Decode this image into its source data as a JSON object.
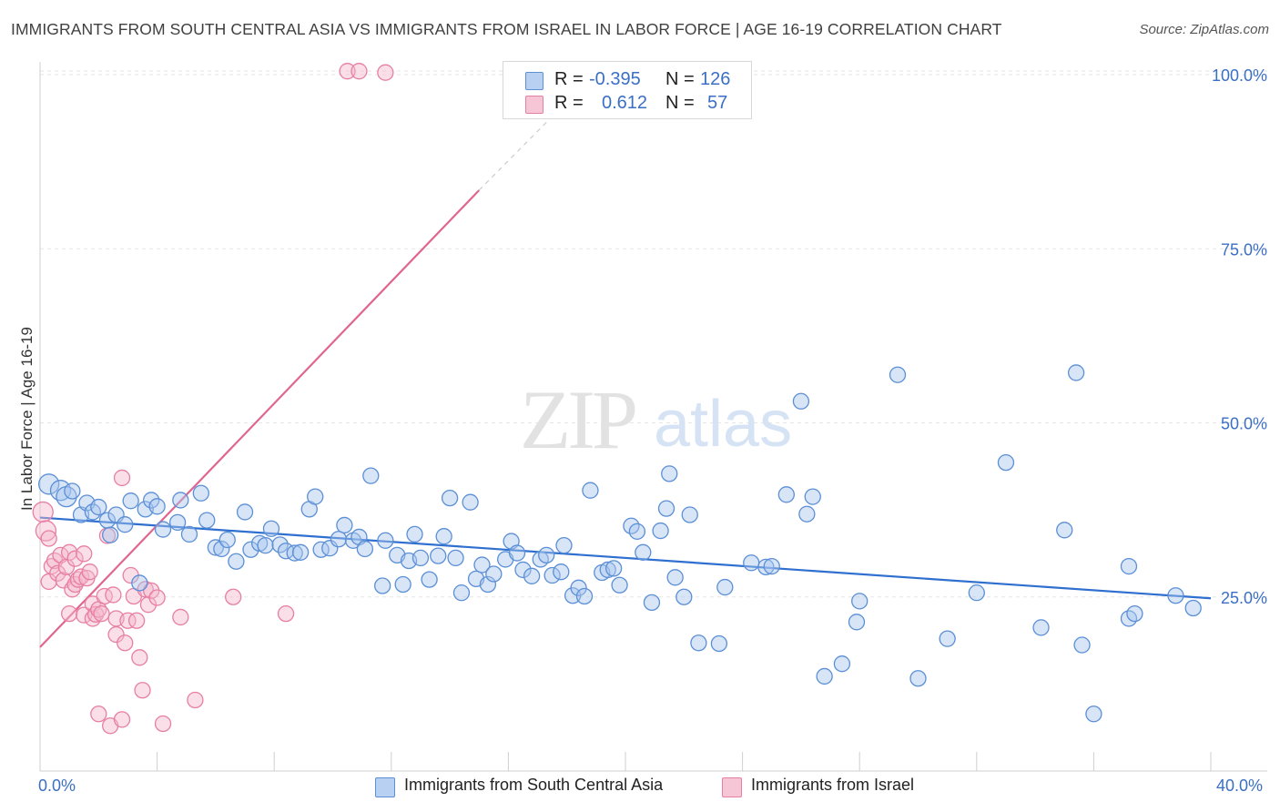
{
  "title": "IMMIGRANTS FROM SOUTH CENTRAL ASIA VS IMMIGRANTS FROM ISRAEL IN LABOR FORCE | AGE 16-19 CORRELATION CHART",
  "source": "Source: ZipAtlas.com",
  "watermark": {
    "zip": "ZIP",
    "atlas": "atlas"
  },
  "legend": {
    "series1": {
      "r_label": "R =",
      "r_value": "-0.395",
      "n_label": "N =",
      "n_value": "126"
    },
    "series2": {
      "r_label": "R =",
      "r_value": "0.612",
      "n_label": "N =",
      "n_value": "57"
    }
  },
  "colors": {
    "blue": "#5b8fd6",
    "blue_fill": "#a9c5ee",
    "blue_line": "#2f6fcf",
    "pink": "#e77fa3",
    "pink_fill": "#f5b8cc",
    "pink_line": "#e06690",
    "axis_text": "#3b6fc4"
  },
  "chart_data": {
    "type": "scatter",
    "title": "IMMIGRANTS FROM SOUTH CENTRAL ASIA VS IMMIGRANTS FROM ISRAEL IN LABOR FORCE | AGE 16-19 CORRELATION CHART",
    "xlabel": "",
    "ylabel": "In Labor Force | Age 16-19",
    "xlim": [
      0,
      40
    ],
    "ylim": [
      0,
      103
    ],
    "x_tick_labels": [
      "0.0%",
      "40.0%"
    ],
    "y_ticks": [
      25,
      50,
      75,
      100
    ],
    "y_tick_labels": [
      "25.0%",
      "50.0%",
      "75.0%",
      "100.0%"
    ],
    "grid": true,
    "legend_position": "top-center",
    "series": [
      {
        "name": "Immigrants from South Central Asia",
        "color": "#5b8fd6",
        "trend": {
          "x": [
            0,
            40
          ],
          "y": [
            36.4,
            24.8
          ]
        },
        "points": [
          [
            0.3,
            41.2
          ],
          [
            0.7,
            40.3
          ],
          [
            0.9,
            39.4
          ],
          [
            1.1,
            40.2
          ],
          [
            1.4,
            36.8
          ],
          [
            1.6,
            38.5
          ],
          [
            1.8,
            37.2
          ],
          [
            2.0,
            37.9
          ],
          [
            2.3,
            36.0
          ],
          [
            2.4,
            33.9
          ],
          [
            2.6,
            36.8
          ],
          [
            2.9,
            35.4
          ],
          [
            3.1,
            38.8
          ],
          [
            3.4,
            27.0
          ],
          [
            3.6,
            37.6
          ],
          [
            3.8,
            38.9
          ],
          [
            4.0,
            38.0
          ],
          [
            4.2,
            34.7
          ],
          [
            4.7,
            35.7
          ],
          [
            4.8,
            38.9
          ],
          [
            5.1,
            34.0
          ],
          [
            5.5,
            39.9
          ],
          [
            5.7,
            36.0
          ],
          [
            6.0,
            32.1
          ],
          [
            6.2,
            31.9
          ],
          [
            6.4,
            33.2
          ],
          [
            6.7,
            30.1
          ],
          [
            7.0,
            37.2
          ],
          [
            7.2,
            31.8
          ],
          [
            7.5,
            32.7
          ],
          [
            7.7,
            32.4
          ],
          [
            7.9,
            34.8
          ],
          [
            8.2,
            32.5
          ],
          [
            8.4,
            31.6
          ],
          [
            8.7,
            31.3
          ],
          [
            8.9,
            31.4
          ],
          [
            9.2,
            37.6
          ],
          [
            9.4,
            39.4
          ],
          [
            9.6,
            31.8
          ],
          [
            9.9,
            32.0
          ],
          [
            10.2,
            33.3
          ],
          [
            10.4,
            35.3
          ],
          [
            10.7,
            33.1
          ],
          [
            10.9,
            33.6
          ],
          [
            11.1,
            31.9
          ],
          [
            11.3,
            42.4
          ],
          [
            11.7,
            26.6
          ],
          [
            11.8,
            33.1
          ],
          [
            12.2,
            31.0
          ],
          [
            12.4,
            26.8
          ],
          [
            12.6,
            30.2
          ],
          [
            12.8,
            34.0
          ],
          [
            13.0,
            30.6
          ],
          [
            13.3,
            27.5
          ],
          [
            13.6,
            30.9
          ],
          [
            13.8,
            33.7
          ],
          [
            14.0,
            39.2
          ],
          [
            14.2,
            30.6
          ],
          [
            14.4,
            25.6
          ],
          [
            14.7,
            38.6
          ],
          [
            14.9,
            27.6
          ],
          [
            15.1,
            29.6
          ],
          [
            15.3,
            26.8
          ],
          [
            15.5,
            28.3
          ],
          [
            15.9,
            30.4
          ],
          [
            16.1,
            33.0
          ],
          [
            16.3,
            31.3
          ],
          [
            16.5,
            28.9
          ],
          [
            16.8,
            28.0
          ],
          [
            17.1,
            30.4
          ],
          [
            17.3,
            31.0
          ],
          [
            17.5,
            28.1
          ],
          [
            17.8,
            28.6
          ],
          [
            17.9,
            32.4
          ],
          [
            18.2,
            25.2
          ],
          [
            18.4,
            26.3
          ],
          [
            18.6,
            25.1
          ],
          [
            18.8,
            40.3
          ],
          [
            19.2,
            28.5
          ],
          [
            19.4,
            28.9
          ],
          [
            19.6,
            29.1
          ],
          [
            19.8,
            26.7
          ],
          [
            20.2,
            35.2
          ],
          [
            20.4,
            34.4
          ],
          [
            20.6,
            31.4
          ],
          [
            20.9,
            24.2
          ],
          [
            21.2,
            34.5
          ],
          [
            21.4,
            37.7
          ],
          [
            21.5,
            42.7
          ],
          [
            21.7,
            27.8
          ],
          [
            22.0,
            25.0
          ],
          [
            22.2,
            36.8
          ],
          [
            22.5,
            18.4
          ],
          [
            23.2,
            18.3
          ],
          [
            23.4,
            26.4
          ],
          [
            24.3,
            29.9
          ],
          [
            24.8,
            29.3
          ],
          [
            25.0,
            29.4
          ],
          [
            25.5,
            39.7
          ],
          [
            26.0,
            53.1
          ],
          [
            26.2,
            36.9
          ],
          [
            26.4,
            39.4
          ],
          [
            26.8,
            13.6
          ],
          [
            27.4,
            15.4
          ],
          [
            27.9,
            21.4
          ],
          [
            28.0,
            24.4
          ],
          [
            29.3,
            56.9
          ],
          [
            30.0,
            13.3
          ],
          [
            31.0,
            19.0
          ],
          [
            32.0,
            25.6
          ],
          [
            33.0,
            44.3
          ],
          [
            34.2,
            20.6
          ],
          [
            35.0,
            34.6
          ],
          [
            35.4,
            57.2
          ],
          [
            35.6,
            18.1
          ],
          [
            36.0,
            8.2
          ],
          [
            37.2,
            29.4
          ],
          [
            37.2,
            21.9
          ],
          [
            37.4,
            22.6
          ],
          [
            38.8,
            25.2
          ],
          [
            39.4,
            23.4
          ]
        ]
      },
      {
        "name": "Immigrants from Israel",
        "color": "#e77fa3",
        "trend": {
          "x": [
            0,
            15.0
          ],
          "y": [
            17.8,
            83.4
          ]
        },
        "trend_extension": {
          "x": [
            15.0,
            17.5
          ],
          "y": [
            83.4,
            94.0
          ]
        },
        "points": [
          [
            0.1,
            37.2
          ],
          [
            0.2,
            34.5
          ],
          [
            0.3,
            33.4
          ],
          [
            0.3,
            27.2
          ],
          [
            0.4,
            29.4
          ],
          [
            0.5,
            30.2
          ],
          [
            0.6,
            28.4
          ],
          [
            0.7,
            31.0
          ],
          [
            0.8,
            27.4
          ],
          [
            0.9,
            29.3
          ],
          [
            1.0,
            31.4
          ],
          [
            1.0,
            22.6
          ],
          [
            1.1,
            26.1
          ],
          [
            1.2,
            26.8
          ],
          [
            1.2,
            30.5
          ],
          [
            1.3,
            27.5
          ],
          [
            1.4,
            27.9
          ],
          [
            1.5,
            31.2
          ],
          [
            1.5,
            22.4
          ],
          [
            1.6,
            27.7
          ],
          [
            1.7,
            28.6
          ],
          [
            1.8,
            21.9
          ],
          [
            1.8,
            24.0
          ],
          [
            1.9,
            22.5
          ],
          [
            2.0,
            23.2
          ],
          [
            2.0,
            8.2
          ],
          [
            2.1,
            22.6
          ],
          [
            2.2,
            25.1
          ],
          [
            2.3,
            33.8
          ],
          [
            2.4,
            6.5
          ],
          [
            2.5,
            25.3
          ],
          [
            2.6,
            21.9
          ],
          [
            2.6,
            19.6
          ],
          [
            2.8,
            7.4
          ],
          [
            2.8,
            42.1
          ],
          [
            2.9,
            18.4
          ],
          [
            3.0,
            21.6
          ],
          [
            3.1,
            28.1
          ],
          [
            3.2,
            25.1
          ],
          [
            3.3,
            21.6
          ],
          [
            3.4,
            16.3
          ],
          [
            3.5,
            11.6
          ],
          [
            3.6,
            26.1
          ],
          [
            3.7,
            23.9
          ],
          [
            3.8,
            25.9
          ],
          [
            4.0,
            24.9
          ],
          [
            4.2,
            6.8
          ],
          [
            4.8,
            22.1
          ],
          [
            5.3,
            10.2
          ],
          [
            6.6,
            25.0
          ],
          [
            8.4,
            22.6
          ],
          [
            10.5,
            100.5
          ],
          [
            10.9,
            100.5
          ],
          [
            11.8,
            100.3
          ]
        ]
      }
    ]
  },
  "axis": {
    "y_label": "In Labor Force | Age 16-19",
    "x_left": "0.0%",
    "x_right": "40.0%",
    "y_ticks": [
      "25.0%",
      "50.0%",
      "75.0%",
      "100.0%"
    ]
  },
  "bottom_legend": [
    "Immigrants from South Central Asia",
    "Immigrants from Israel"
  ]
}
